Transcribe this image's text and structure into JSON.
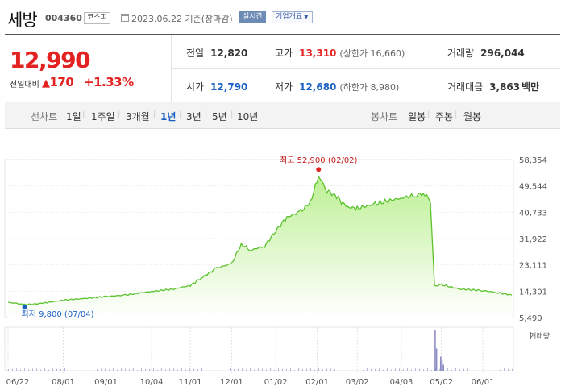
{
  "header": {
    "stock_name": "세방",
    "stock_code": "004360",
    "market": "코스피",
    "date_text": "2023.06.22 기준(장마감)",
    "realtime_label": "실시간",
    "profile_label": "기업개요"
  },
  "price": {
    "current": "12,990",
    "compare_label": "전일대비",
    "change": "170",
    "change_pct": "+1.33%",
    "up_color": "#e32222"
  },
  "stats": {
    "prev_close_label": "전일",
    "prev_close": "12,820",
    "high_label": "고가",
    "high": "13,310",
    "upper_limit": "(상한가 16,660)",
    "volume_label": "거래량",
    "volume": "296,044",
    "open_label": "시가",
    "open": "12,790",
    "low_label": "저가",
    "low": "12,680",
    "lower_limit": "(하한가 8,980)",
    "amount_label": "거래대금",
    "amount": "3,863",
    "amount_unit": "백만"
  },
  "tabs": {
    "line_label": "선차트",
    "line_periods": [
      "1일",
      "1주일",
      "3개월",
      "1년",
      "3년",
      "5년",
      "10년"
    ],
    "selected_period": "1년",
    "candle_label": "봉차트",
    "candle_periods": [
      "일봉",
      "주봉",
      "월봉"
    ]
  },
  "chart_data": {
    "type": "area",
    "y_ticks": [
      "58,354",
      "49,544",
      "40,733",
      "31,922",
      "23,111",
      "14,301",
      "5,490"
    ],
    "ylim": [
      5490,
      58354
    ],
    "x_ticks": [
      "06/22",
      "08/01",
      "09/01",
      "10/04",
      "11/01",
      "12/01",
      "01/02",
      "02/01",
      "03/02",
      "04/03",
      "05/02",
      "06/01"
    ],
    "high_annotation": "최고 52,900 (02/02)",
    "low_annotation": "최저 9,800 (07/04)",
    "volume_label": "거래량",
    "line_color": "#5cc22e",
    "fill_color": "#b9ef8e",
    "series": [
      {
        "points": [
          [
            "2022-06-22",
            10600
          ],
          [
            "2022-06-28",
            10200
          ],
          [
            "2022-07-04",
            9800
          ],
          [
            "2022-07-12",
            10000
          ],
          [
            "2022-07-20",
            10500
          ],
          [
            "2022-08-01",
            11300
          ],
          [
            "2022-08-15",
            11800
          ],
          [
            "2022-09-01",
            12500
          ],
          [
            "2022-09-15",
            13000
          ],
          [
            "2022-10-04",
            14200
          ],
          [
            "2022-10-20",
            15000
          ],
          [
            "2022-11-01",
            16200
          ],
          [
            "2022-11-10",
            19000
          ],
          [
            "2022-11-20",
            22000
          ],
          [
            "2022-12-01",
            23500
          ],
          [
            "2022-12-08",
            30000
          ],
          [
            "2022-12-15",
            28000
          ],
          [
            "2022-12-25",
            29500
          ],
          [
            "2023-01-02",
            34500
          ],
          [
            "2023-01-10",
            39000
          ],
          [
            "2023-01-20",
            41000
          ],
          [
            "2023-01-27",
            44000
          ],
          [
            "2023-02-02",
            52900
          ],
          [
            "2023-02-08",
            48000
          ],
          [
            "2023-02-15",
            46000
          ],
          [
            "2023-02-22",
            42500
          ],
          [
            "2023-03-02",
            42000
          ],
          [
            "2023-03-15",
            43500
          ],
          [
            "2023-04-03",
            45500
          ],
          [
            "2023-04-14",
            46500
          ],
          [
            "2023-04-20",
            47000
          ],
          [
            "2023-04-24",
            44000
          ],
          [
            "2023-04-27",
            16000
          ],
          [
            "2023-05-02",
            16500
          ],
          [
            "2023-05-15",
            15000
          ],
          [
            "2023-06-01",
            14500
          ],
          [
            "2023-06-12",
            13800
          ],
          [
            "2023-06-22",
            12990
          ]
        ]
      }
    ],
    "volume_spikes": [
      [
        "2023-04-27",
        1.0
      ],
      [
        "2023-04-28",
        0.55
      ],
      [
        "2023-05-01",
        0.35
      ],
      [
        "2023-05-02",
        0.25
      ],
      [
        "2023-05-03",
        0.15
      ]
    ]
  }
}
